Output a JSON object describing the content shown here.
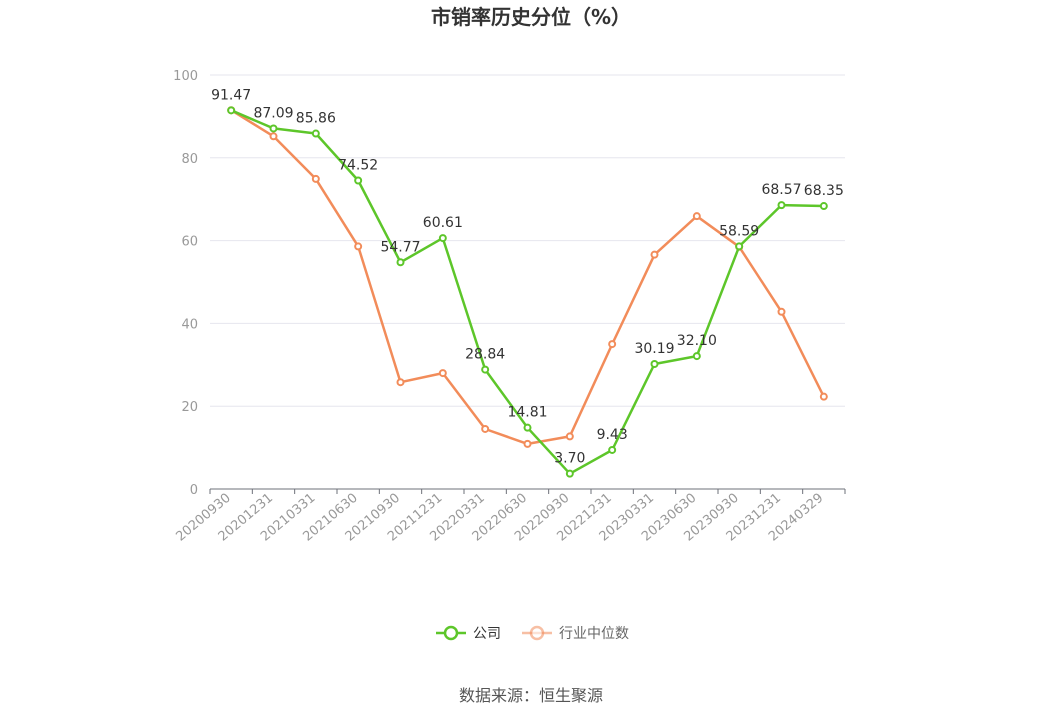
{
  "chart_data": {
    "type": "line",
    "title": "市销率历史分位（%）",
    "categories": [
      "20200930",
      "20201231",
      "20210331",
      "20210630",
      "20210930",
      "20211231",
      "20220331",
      "20220630",
      "20220930",
      "20221231",
      "20230331",
      "20230630",
      "20230930",
      "20231231",
      "20240329"
    ],
    "ylim": [
      0,
      100
    ],
    "yticks": [
      0,
      20,
      40,
      60,
      80,
      100
    ],
    "grid": true,
    "legend_position": "bottom",
    "series": [
      {
        "name": "公司",
        "color": "#5dc62a",
        "values": [
          91.47,
          87.09,
          85.86,
          74.52,
          54.77,
          60.61,
          28.84,
          14.81,
          3.7,
          9.43,
          30.19,
          32.1,
          58.59,
          68.57,
          68.35
        ],
        "labels": [
          "91.47",
          "87.09",
          "85.86",
          "74.52",
          "54.77",
          "60.61",
          "28.84",
          "14.81",
          "3.70",
          "9.43",
          "30.19",
          "32.10",
          "58.59",
          "68.57",
          "68.35"
        ]
      },
      {
        "name": "行业中位数",
        "color": "#f28c5a",
        "values": [
          91.5,
          85.2,
          74.9,
          58.6,
          25.8,
          28.0,
          14.5,
          10.9,
          12.7,
          35.0,
          56.6,
          65.9,
          58.5,
          42.8,
          22.3
        ]
      }
    ]
  },
  "source": "数据来源：恒生聚源"
}
